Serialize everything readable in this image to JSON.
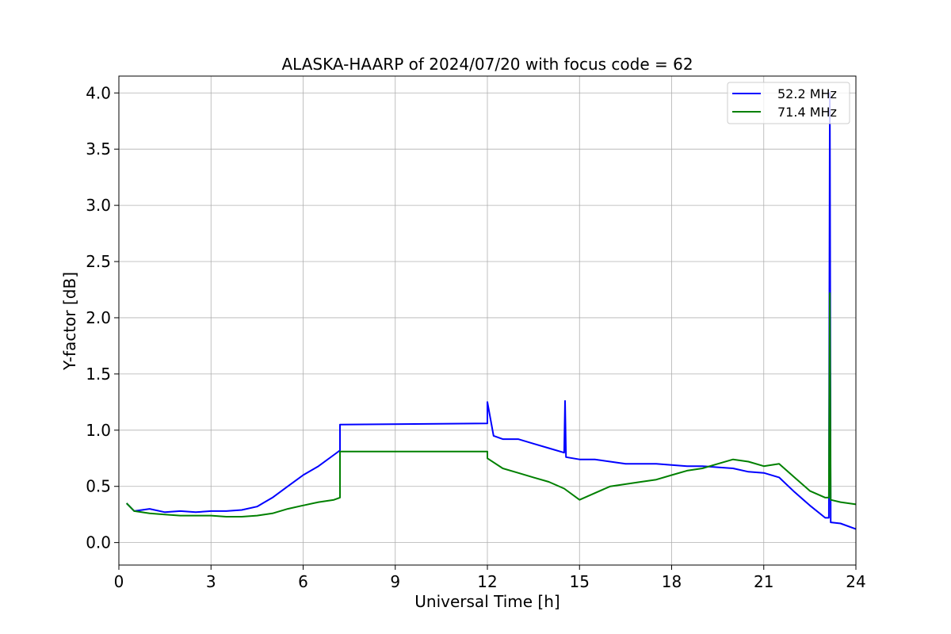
{
  "chart_data": {
    "type": "line",
    "title": "ALASKA-HAARP of 2024/07/20 with focus code = 62",
    "xlabel": "Universal Time [h]",
    "ylabel": "Y-factor [dB]",
    "xlim": [
      0,
      24
    ],
    "ylim": [
      -0.2,
      4.15
    ],
    "xticks": [
      0,
      3,
      6,
      9,
      12,
      15,
      18,
      21,
      24
    ],
    "xtick_labels": [
      "0",
      "3",
      "6",
      "9",
      "12",
      "15",
      "18",
      "21",
      "24"
    ],
    "yticks": [
      0.0,
      0.5,
      1.0,
      1.5,
      2.0,
      2.5,
      3.0,
      3.5,
      4.0
    ],
    "ytick_labels": [
      "0.0",
      "0.5",
      "1.0",
      "1.5",
      "2.0",
      "2.5",
      "3.0",
      "3.5",
      "4.0"
    ],
    "grid": true,
    "legend_position": "top-right",
    "series": [
      {
        "name": "52.2 MHz",
        "color": "#0000ff",
        "points": [
          [
            0.25,
            0.35
          ],
          [
            0.5,
            0.28
          ],
          [
            1.0,
            0.3
          ],
          [
            1.5,
            0.27
          ],
          [
            2.0,
            0.28
          ],
          [
            2.5,
            0.27
          ],
          [
            3.0,
            0.28
          ],
          [
            3.5,
            0.28
          ],
          [
            4.0,
            0.29
          ],
          [
            4.5,
            0.32
          ],
          [
            5.0,
            0.4
          ],
          [
            5.5,
            0.5
          ],
          [
            6.0,
            0.6
          ],
          [
            6.5,
            0.68
          ],
          [
            7.0,
            0.78
          ],
          [
            7.2,
            0.82
          ],
          [
            7.2,
            1.05
          ],
          [
            12.0,
            1.06
          ],
          [
            12.0,
            1.25
          ],
          [
            12.2,
            0.95
          ],
          [
            12.5,
            0.92
          ],
          [
            13.0,
            0.92
          ],
          [
            13.5,
            0.88
          ],
          [
            14.0,
            0.84
          ],
          [
            14.5,
            0.8
          ],
          [
            14.53,
            1.26
          ],
          [
            14.56,
            0.76
          ],
          [
            15.0,
            0.74
          ],
          [
            15.5,
            0.74
          ],
          [
            16.0,
            0.72
          ],
          [
            16.5,
            0.7
          ],
          [
            17.0,
            0.7
          ],
          [
            17.5,
            0.7
          ],
          [
            18.0,
            0.69
          ],
          [
            18.5,
            0.68
          ],
          [
            19.0,
            0.68
          ],
          [
            19.5,
            0.67
          ],
          [
            20.0,
            0.66
          ],
          [
            20.5,
            0.63
          ],
          [
            21.0,
            0.62
          ],
          [
            21.5,
            0.58
          ],
          [
            22.0,
            0.45
          ],
          [
            22.5,
            0.33
          ],
          [
            23.0,
            0.22
          ],
          [
            23.12,
            0.22
          ],
          [
            23.15,
            4.0
          ],
          [
            23.18,
            0.18
          ],
          [
            23.5,
            0.17
          ],
          [
            24.0,
            0.12
          ]
        ]
      },
      {
        "name": "71.4 MHz",
        "color": "#008000",
        "points": [
          [
            0.25,
            0.35
          ],
          [
            0.5,
            0.28
          ],
          [
            1.0,
            0.26
          ],
          [
            1.5,
            0.25
          ],
          [
            2.0,
            0.24
          ],
          [
            2.5,
            0.24
          ],
          [
            3.0,
            0.24
          ],
          [
            3.5,
            0.23
          ],
          [
            4.0,
            0.23
          ],
          [
            4.5,
            0.24
          ],
          [
            5.0,
            0.26
          ],
          [
            5.5,
            0.3
          ],
          [
            6.0,
            0.33
          ],
          [
            6.5,
            0.36
          ],
          [
            7.0,
            0.38
          ],
          [
            7.2,
            0.4
          ],
          [
            7.2,
            0.81
          ],
          [
            12.0,
            0.81
          ],
          [
            12.0,
            0.75
          ],
          [
            12.5,
            0.66
          ],
          [
            13.0,
            0.62
          ],
          [
            13.5,
            0.58
          ],
          [
            14.0,
            0.54
          ],
          [
            14.5,
            0.48
          ],
          [
            15.0,
            0.38
          ],
          [
            15.5,
            0.44
          ],
          [
            16.0,
            0.5
          ],
          [
            16.5,
            0.52
          ],
          [
            17.0,
            0.54
          ],
          [
            17.5,
            0.56
          ],
          [
            18.0,
            0.6
          ],
          [
            18.5,
            0.64
          ],
          [
            19.0,
            0.66
          ],
          [
            19.5,
            0.7
          ],
          [
            20.0,
            0.74
          ],
          [
            20.5,
            0.72
          ],
          [
            21.0,
            0.68
          ],
          [
            21.5,
            0.7
          ],
          [
            22.0,
            0.58
          ],
          [
            22.5,
            0.46
          ],
          [
            23.0,
            0.4
          ],
          [
            23.12,
            0.4
          ],
          [
            23.15,
            2.22
          ],
          [
            23.18,
            0.38
          ],
          [
            23.5,
            0.36
          ],
          [
            24.0,
            0.34
          ]
        ]
      }
    ]
  }
}
